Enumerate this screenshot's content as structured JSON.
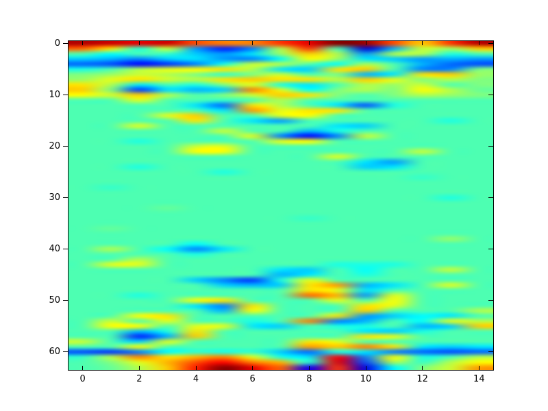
{
  "chart_data": {
    "type": "heatmap",
    "title": "",
    "xlabel": "",
    "ylabel": "",
    "colormap": "jet",
    "interpolation": "bilinear",
    "grid": false,
    "x_extent": [
      -0.5,
      14.5
    ],
    "y_extent": [
      -0.5,
      63.5
    ],
    "origin": "upper",
    "vmin": -1.0,
    "vmax": 1.0,
    "x_tick_labels": [
      "0",
      "2",
      "4",
      "6",
      "8",
      "10",
      "12",
      "14"
    ],
    "x_tick_values": [
      0,
      2,
      4,
      6,
      8,
      10,
      12,
      14
    ],
    "y_tick_labels": [
      "0",
      "10",
      "20",
      "30",
      "40",
      "50",
      "60"
    ],
    "y_tick_values": [
      0,
      10,
      20,
      30,
      40,
      50,
      60
    ],
    "n_cols": 15,
    "n_rows": 64,
    "values": [
      [
        0.9,
        0.85,
        0.8,
        0.85,
        0.6,
        0.5,
        0.5,
        0.65,
        0.8,
        1.0,
        0.95,
        0.6,
        0.35,
        0.65,
        0.9
      ],
      [
        0.55,
        0.3,
        -0.2,
        0.15,
        -0.45,
        -0.7,
        -0.5,
        0.1,
        0.65,
        -0.1,
        -0.85,
        -0.4,
        0.15,
        0.05,
        0.35
      ],
      [
        -0.1,
        -0.25,
        -0.1,
        -0.15,
        -0.35,
        -0.45,
        -0.3,
        0.05,
        0.35,
        0.1,
        -0.45,
        0.1,
        0.1,
        -0.2,
        -0.1
      ],
      [
        -0.35,
        -0.4,
        -0.5,
        -0.35,
        -0.3,
        -0.45,
        -0.5,
        -0.25,
        0.25,
        0.05,
        -0.3,
        -0.35,
        -0.45,
        -0.4,
        -0.45
      ],
      [
        -0.55,
        -0.6,
        -0.75,
        -0.65,
        -0.5,
        -0.2,
        0.15,
        0.1,
        -0.1,
        -0.25,
        0.1,
        -0.1,
        -0.4,
        -0.55,
        -0.6
      ],
      [
        -0.2,
        -0.1,
        0.1,
        0.2,
        0.25,
        0.3,
        0.1,
        -0.3,
        -0.35,
        0.3,
        0.35,
        -0.1,
        -0.5,
        -0.5,
        0.0
      ],
      [
        0.0,
        0.05,
        0.15,
        0.1,
        0.0,
        -0.15,
        0.0,
        0.15,
        -0.1,
        0.0,
        -0.4,
        -0.3,
        0.3,
        0.35,
        0.05
      ],
      [
        0.05,
        0.2,
        0.3,
        0.15,
        0.1,
        0.3,
        0.35,
        0.3,
        0.3,
        0.1,
        0.35,
        0.2,
        0.0,
        0.1,
        0.0
      ],
      [
        0.3,
        0.1,
        -0.3,
        -0.1,
        -0.2,
        0.0,
        0.2,
        -0.2,
        -0.3,
        -0.1,
        0.1,
        0.05,
        0.15,
        -0.1,
        0.0
      ],
      [
        0.35,
        0.0,
        -0.65,
        -0.3,
        -0.4,
        -0.35,
        0.5,
        0.2,
        -0.25,
        0.0,
        0.1,
        0.0,
        0.25,
        0.1,
        -0.05
      ],
      [
        0.25,
        0.15,
        0.35,
        0.1,
        -0.1,
        0.0,
        0.15,
        0.35,
        0.3,
        0.0,
        -0.1,
        0.0,
        0.1,
        0.05,
        0.0
      ],
      [
        -0.1,
        -0.1,
        0.2,
        -0.1,
        -0.1,
        -0.15,
        -0.1,
        0.1,
        -0.1,
        -0.1,
        -0.1,
        -0.1,
        -0.1,
        -0.1,
        -0.1
      ],
      [
        -0.1,
        -0.1,
        -0.1,
        -0.1,
        -0.3,
        -0.55,
        0.3,
        0.1,
        -0.1,
        -0.3,
        -0.6,
        -0.2,
        -0.1,
        -0.1,
        -0.1
      ],
      [
        -0.1,
        -0.1,
        -0.1,
        -0.1,
        -0.1,
        -0.3,
        0.45,
        0.2,
        0.3,
        0.3,
        -0.1,
        -0.1,
        -0.1,
        -0.1,
        -0.1
      ],
      [
        -0.1,
        -0.1,
        -0.1,
        0.2,
        0.35,
        -0.1,
        -0.1,
        0.2,
        0.25,
        -0.1,
        -0.1,
        -0.1,
        -0.1,
        -0.1,
        -0.1
      ],
      [
        -0.1,
        -0.1,
        -0.1,
        -0.1,
        0.3,
        -0.1,
        -0.3,
        -0.45,
        -0.1,
        -0.1,
        -0.1,
        -0.1,
        -0.1,
        -0.2,
        -0.1
      ],
      [
        -0.1,
        -0.1,
        0.2,
        -0.1,
        -0.1,
        -0.1,
        -0.1,
        -0.1,
        -0.1,
        -0.3,
        -0.35,
        -0.1,
        -0.1,
        -0.1,
        -0.1
      ],
      [
        -0.1,
        -0.1,
        -0.1,
        -0.1,
        -0.1,
        0.15,
        -0.1,
        -0.1,
        -0.4,
        -0.2,
        -0.1,
        -0.1,
        -0.1,
        -0.1,
        -0.1
      ],
      [
        -0.1,
        -0.1,
        -0.1,
        -0.1,
        -0.1,
        -0.1,
        0.2,
        -0.5,
        -0.75,
        -0.5,
        0.15,
        -0.1,
        -0.1,
        -0.1,
        -0.1
      ],
      [
        -0.1,
        -0.1,
        -0.2,
        -0.1,
        -0.1,
        -0.1,
        -0.1,
        0.2,
        0.25,
        -0.1,
        -0.1,
        -0.1,
        -0.1,
        -0.1,
        -0.1
      ],
      [
        -0.1,
        -0.1,
        -0.1,
        -0.1,
        0.15,
        0.2,
        -0.1,
        -0.1,
        -0.1,
        -0.1,
        -0.1,
        -0.1,
        -0.1,
        -0.1,
        -0.1
      ],
      [
        -0.1,
        -0.1,
        -0.1,
        -0.1,
        0.25,
        0.25,
        -0.1,
        -0.1,
        -0.1,
        -0.1,
        -0.1,
        -0.1,
        0.15,
        -0.1,
        -0.1
      ],
      [
        -0.1,
        -0.1,
        -0.1,
        -0.1,
        -0.1,
        -0.1,
        -0.1,
        -0.1,
        -0.1,
        0.2,
        -0.1,
        -0.1,
        -0.1,
        -0.1,
        -0.1
      ],
      [
        -0.1,
        -0.1,
        -0.1,
        -0.1,
        -0.1,
        -0.1,
        -0.1,
        -0.1,
        -0.1,
        -0.1,
        -0.3,
        -0.45,
        -0.1,
        -0.1,
        -0.1
      ],
      [
        -0.1,
        -0.1,
        -0.2,
        -0.1,
        -0.1,
        -0.1,
        -0.1,
        -0.1,
        -0.1,
        -0.1,
        -0.35,
        -0.3,
        -0.1,
        -0.1,
        -0.1
      ],
      [
        -0.1,
        -0.1,
        -0.1,
        -0.1,
        -0.1,
        -0.2,
        -0.1,
        -0.1,
        -0.1,
        -0.1,
        -0.1,
        -0.1,
        -0.1,
        -0.1,
        -0.1
      ],
      [
        -0.1,
        -0.1,
        -0.1,
        -0.1,
        -0.1,
        -0.1,
        -0.1,
        -0.1,
        -0.1,
        -0.1,
        -0.1,
        -0.1,
        -0.15,
        -0.1,
        -0.1
      ],
      [
        -0.1,
        -0.1,
        -0.1,
        -0.1,
        -0.1,
        -0.1,
        -0.1,
        -0.1,
        -0.1,
        -0.1,
        -0.1,
        -0.1,
        -0.1,
        -0.1,
        -0.1
      ],
      [
        -0.1,
        -0.15,
        -0.1,
        -0.1,
        -0.1,
        -0.1,
        -0.1,
        -0.1,
        -0.1,
        -0.1,
        -0.1,
        -0.1,
        -0.1,
        -0.1,
        -0.1
      ],
      [
        -0.1,
        -0.1,
        -0.1,
        -0.1,
        -0.1,
        -0.1,
        -0.1,
        -0.1,
        -0.1,
        -0.1,
        -0.1,
        -0.1,
        -0.1,
        -0.1,
        -0.1
      ],
      [
        -0.1,
        -0.1,
        -0.1,
        -0.1,
        -0.1,
        -0.1,
        -0.1,
        -0.1,
        -0.1,
        -0.1,
        -0.1,
        -0.1,
        -0.1,
        -0.2,
        -0.1
      ],
      [
        -0.1,
        -0.1,
        -0.1,
        -0.1,
        -0.1,
        -0.1,
        -0.1,
        -0.1,
        -0.1,
        -0.1,
        -0.1,
        -0.1,
        -0.1,
        -0.1,
        -0.1
      ],
      [
        -0.1,
        -0.1,
        -0.1,
        -0.05,
        -0.1,
        -0.1,
        -0.1,
        -0.1,
        -0.1,
        -0.1,
        -0.1,
        -0.1,
        -0.1,
        -0.1,
        -0.1
      ],
      [
        -0.1,
        -0.1,
        -0.1,
        -0.1,
        -0.1,
        -0.1,
        -0.1,
        -0.1,
        -0.1,
        -0.1,
        -0.1,
        -0.1,
        -0.1,
        -0.1,
        -0.1
      ],
      [
        -0.1,
        -0.1,
        -0.1,
        -0.1,
        -0.1,
        -0.1,
        -0.1,
        -0.1,
        -0.15,
        -0.1,
        -0.1,
        -0.1,
        -0.1,
        -0.1,
        -0.1
      ],
      [
        -0.1,
        -0.1,
        -0.1,
        -0.1,
        -0.1,
        -0.1,
        -0.1,
        -0.1,
        -0.1,
        -0.1,
        -0.1,
        -0.1,
        -0.1,
        -0.1,
        -0.1
      ],
      [
        -0.1,
        -0.05,
        -0.1,
        -0.1,
        -0.1,
        -0.1,
        -0.1,
        -0.1,
        -0.1,
        -0.1,
        -0.1,
        -0.1,
        -0.1,
        -0.1,
        -0.1
      ],
      [
        -0.1,
        -0.1,
        -0.1,
        -0.1,
        -0.1,
        -0.1,
        -0.1,
        -0.1,
        -0.1,
        -0.1,
        -0.1,
        -0.1,
        -0.1,
        -0.1,
        -0.1
      ],
      [
        -0.1,
        -0.1,
        -0.1,
        -0.1,
        -0.1,
        -0.1,
        -0.1,
        -0.1,
        -0.1,
        -0.1,
        -0.1,
        -0.1,
        -0.1,
        0.05,
        -0.1
      ],
      [
        -0.1,
        -0.1,
        -0.1,
        -0.1,
        -0.25,
        -0.1,
        -0.1,
        -0.1,
        -0.1,
        -0.1,
        -0.1,
        -0.1,
        -0.1,
        -0.1,
        -0.1
      ],
      [
        -0.1,
        0.1,
        -0.1,
        -0.25,
        -0.5,
        -0.3,
        -0.1,
        -0.1,
        -0.1,
        -0.1,
        -0.1,
        -0.1,
        -0.1,
        -0.1,
        -0.1
      ],
      [
        -0.1,
        -0.1,
        -0.1,
        -0.1,
        -0.2,
        -0.1,
        -0.1,
        -0.1,
        -0.1,
        -0.1,
        -0.1,
        -0.1,
        -0.1,
        -0.1,
        -0.1
      ],
      [
        -0.1,
        -0.1,
        0.1,
        -0.1,
        -0.1,
        -0.1,
        -0.1,
        -0.1,
        -0.1,
        -0.1,
        -0.1,
        -0.1,
        -0.1,
        -0.1,
        -0.1
      ],
      [
        -0.1,
        0.2,
        0.2,
        -0.1,
        -0.1,
        -0.1,
        -0.1,
        -0.1,
        -0.1,
        -0.2,
        -0.2,
        -0.2,
        -0.1,
        -0.1,
        -0.1
      ],
      [
        -0.1,
        -0.1,
        -0.1,
        -0.1,
        -0.1,
        -0.1,
        -0.1,
        -0.3,
        -0.35,
        -0.1,
        -0.25,
        -0.1,
        -0.1,
        0.15,
        -0.1
      ],
      [
        -0.1,
        -0.1,
        -0.1,
        -0.1,
        -0.1,
        -0.1,
        -0.1,
        -0.4,
        -0.3,
        -0.1,
        -0.2,
        -0.1,
        -0.1,
        -0.1,
        -0.1
      ],
      [
        -0.1,
        -0.1,
        -0.1,
        -0.1,
        -0.35,
        -0.5,
        -0.65,
        -0.2,
        0.2,
        -0.1,
        -0.1,
        -0.1,
        -0.1,
        -0.1,
        -0.1
      ],
      [
        -0.1,
        -0.1,
        -0.1,
        -0.1,
        -0.1,
        -0.35,
        -0.4,
        -0.35,
        0.3,
        0.45,
        -0.4,
        -0.3,
        -0.1,
        0.2,
        -0.1
      ],
      [
        -0.1,
        -0.1,
        -0.1,
        -0.1,
        -0.1,
        -0.1,
        -0.1,
        -0.1,
        0.3,
        0.2,
        -0.3,
        -0.1,
        -0.1,
        -0.1,
        -0.1
      ],
      [
        -0.1,
        -0.1,
        -0.2,
        -0.1,
        -0.1,
        -0.1,
        -0.1,
        -0.1,
        0.55,
        0.4,
        -0.45,
        0.2,
        -0.1,
        -0.1,
        -0.1
      ],
      [
        -0.1,
        -0.1,
        -0.1,
        -0.1,
        0.25,
        0.3,
        -0.1,
        -0.1,
        -0.1,
        0.2,
        -0.1,
        0.25,
        -0.1,
        -0.1,
        -0.1
      ],
      [
        -0.1,
        -0.1,
        -0.1,
        -0.1,
        -0.3,
        -0.5,
        0.3,
        -0.1,
        -0.1,
        -0.1,
        0.3,
        0.2,
        -0.1,
        -0.1,
        -0.1
      ],
      [
        -0.1,
        -0.1,
        -0.1,
        -0.1,
        -0.1,
        -0.4,
        0.25,
        -0.1,
        -0.1,
        -0.1,
        0.35,
        -0.1,
        -0.1,
        -0.1,
        0.1
      ],
      [
        -0.1,
        -0.1,
        0.25,
        0.3,
        -0.1,
        -0.1,
        -0.1,
        -0.1,
        -0.1,
        0.3,
        -0.45,
        -0.35,
        -0.25,
        -0.3,
        -0.1
      ],
      [
        -0.1,
        0.15,
        -0.1,
        0.2,
        -0.1,
        -0.1,
        -0.2,
        -0.1,
        0.5,
        -0.5,
        -0.4,
        -0.1,
        -0.25,
        0.2,
        0.1
      ],
      [
        -0.1,
        0.25,
        0.25,
        -0.1,
        0.2,
        0.2,
        -0.3,
        -0.35,
        -0.1,
        -0.2,
        -0.2,
        -0.1,
        -0.4,
        -0.35,
        0.35
      ],
      [
        -0.1,
        -0.1,
        -0.4,
        -0.2,
        0.3,
        -0.1,
        -0.1,
        -0.1,
        -0.1,
        -0.1,
        -0.3,
        -0.35,
        -0.2,
        -0.1,
        -0.1
      ],
      [
        -0.1,
        -0.1,
        -0.7,
        -0.4,
        0.35,
        -0.1,
        -0.1,
        -0.1,
        -0.1,
        -0.1,
        0.3,
        0.2,
        -0.1,
        -0.1,
        -0.1
      ],
      [
        0.15,
        -0.1,
        -0.35,
        0.2,
        -0.1,
        -0.1,
        -0.1,
        -0.1,
        0.3,
        0.2,
        -0.1,
        -0.1,
        -0.1,
        -0.1,
        -0.1
      ],
      [
        -0.1,
        -0.1,
        0.25,
        -0.1,
        -0.1,
        -0.1,
        -0.1,
        -0.1,
        0.45,
        0.35,
        0.5,
        0.3,
        -0.3,
        -0.35,
        -0.3
      ],
      [
        -0.6,
        -0.65,
        -0.5,
        -0.25,
        -0.15,
        -0.2,
        -0.15,
        -0.35,
        -0.55,
        -0.2,
        -0.3,
        -0.5,
        -0.55,
        -0.6,
        -0.55
      ],
      [
        -0.15,
        0.1,
        0.5,
        0.3,
        0.4,
        0.5,
        0.2,
        -0.2,
        -0.3,
        0.75,
        -0.5,
        0.25,
        -0.2,
        -0.1,
        0.1
      ],
      [
        -0.1,
        0.0,
        0.2,
        0.4,
        0.6,
        0.75,
        0.5,
        0.4,
        -0.2,
        0.8,
        -0.6,
        0.1,
        -0.15,
        0.1,
        0.25
      ],
      [
        -0.1,
        -0.05,
        0.1,
        0.35,
        0.7,
        1.0,
        0.8,
        0.55,
        -0.75,
        0.65,
        -0.8,
        -0.25,
        0.0,
        0.15,
        0.45
      ]
    ]
  },
  "style": {
    "figure_background": "#ffffff",
    "frame_color": "#000000",
    "tick_color": "#000000",
    "tick_label_color": "#000000"
  }
}
